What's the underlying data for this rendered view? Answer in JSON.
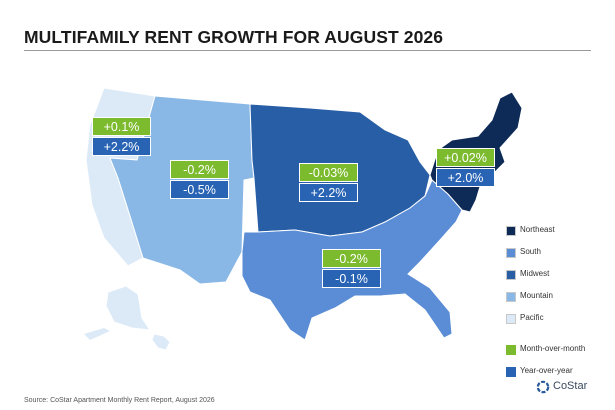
{
  "title": "MULTIFAMILY RENT GROWTH FOR AUGUST 2026",
  "colors": {
    "northeast": "#0e2a56",
    "south": "#5a8dd6",
    "midwest": "#275ea6",
    "mountain": "#8ab8e6",
    "pacific": "#dceaf8",
    "month_over_month": "#7cba2e",
    "year_over_year": "#2863b4"
  },
  "regions": [
    {
      "id": "pacific",
      "mom": "+0.1%",
      "yoy": "+2.2%"
    },
    {
      "id": "mountain",
      "mom": "-0.2%",
      "yoy": "-0.5%"
    },
    {
      "id": "midwest",
      "mom": "-0.03%",
      "yoy": "+2.2%"
    },
    {
      "id": "northeast",
      "mom": "+0.02%",
      "yoy": "+2.0%"
    },
    {
      "id": "south",
      "mom": "-0.2%",
      "yoy": "-0.1%"
    }
  ],
  "legend": {
    "regions": [
      "Northeast",
      "South",
      "Midwest",
      "Mountain",
      "Pacific"
    ],
    "metrics": [
      "Month-over-month",
      "Year-over-year"
    ]
  },
  "source": "Source: CoStar Apartment Monthly Rent Report, August 2026",
  "logo": "CoStar"
}
